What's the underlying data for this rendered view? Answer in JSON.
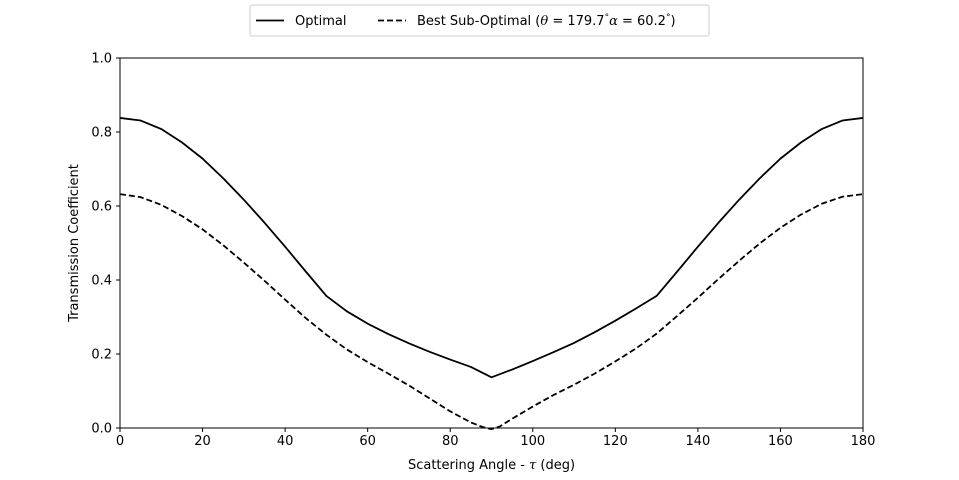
{
  "chart_data": {
    "type": "line",
    "title": "",
    "xlabel": "Scattering Angle - τ (deg)",
    "xlabel_parts": {
      "prefix": "Scattering Angle - ",
      "symbol": "τ",
      "suffix": " (deg)"
    },
    "ylabel": "Transmission Coefficient",
    "xlim": [
      0,
      180
    ],
    "ylim": [
      0,
      1.0
    ],
    "xticks": [
      0,
      20,
      40,
      60,
      80,
      100,
      120,
      140,
      160,
      180
    ],
    "xtick_labels": [
      "0",
      "20",
      "40",
      "60",
      "80",
      "100",
      "120",
      "140",
      "160",
      "180"
    ],
    "yticks": [
      0,
      0.2,
      0.4,
      0.6,
      0.8,
      1.0
    ],
    "ytick_labels": [
      "0.0",
      "0.2",
      "0.4",
      "0.6",
      "0.8",
      "1.0"
    ],
    "grid": false,
    "legend_position": "top-center-outside",
    "series": [
      {
        "name": "Optimal",
        "style": "solid",
        "color": "#000000",
        "x": [
          0,
          5,
          10,
          15,
          20,
          25,
          30,
          35,
          40,
          45,
          50,
          55,
          60,
          65,
          70,
          75,
          80,
          85,
          90,
          95,
          100,
          105,
          110,
          115,
          120,
          125,
          130,
          135,
          140,
          145,
          150,
          155,
          160,
          165,
          170,
          175,
          180
        ],
        "y": [
          0.838,
          0.831,
          0.808,
          0.772,
          0.728,
          0.675,
          0.617,
          0.555,
          0.49,
          0.423,
          0.357,
          0.315,
          0.282,
          0.254,
          0.229,
          0.206,
          0.185,
          0.165,
          0.137,
          0.158,
          0.181,
          0.205,
          0.23,
          0.259,
          0.29,
          0.323,
          0.357,
          0.423,
          0.49,
          0.555,
          0.617,
          0.675,
          0.728,
          0.772,
          0.808,
          0.831,
          0.838
        ]
      },
      {
        "name": "Best Sub-Optimal (θ =  179.7°α =  60.2°)",
        "name_parts": {
          "prefix": "Best Sub-Optimal (",
          "theta_symbol": "θ",
          "theta_eq": " =  179.7",
          "alpha_symbol": "α",
          "alpha_eq": " =  60.2",
          "degree": "°",
          "suffix": ")"
        },
        "style": "dashed",
        "color": "#000000",
        "x": [
          0,
          5,
          10,
          15,
          20,
          25,
          30,
          35,
          40,
          45,
          50,
          55,
          60,
          65,
          70,
          75,
          80,
          85,
          88,
          90,
          92,
          95,
          100,
          105,
          110,
          115,
          120,
          125,
          130,
          135,
          140,
          145,
          150,
          155,
          160,
          165,
          170,
          175,
          180
        ],
        "y": [
          0.632,
          0.624,
          0.603,
          0.573,
          0.537,
          0.494,
          0.447,
          0.398,
          0.347,
          0.297,
          0.252,
          0.212,
          0.178,
          0.147,
          0.115,
          0.08,
          0.045,
          0.015,
          0.002,
          -0.003,
          0.004,
          0.025,
          0.058,
          0.089,
          0.117,
          0.147,
          0.18,
          0.215,
          0.255,
          0.303,
          0.352,
          0.403,
          0.452,
          0.499,
          0.541,
          0.577,
          0.606,
          0.625,
          0.632
        ]
      }
    ]
  }
}
